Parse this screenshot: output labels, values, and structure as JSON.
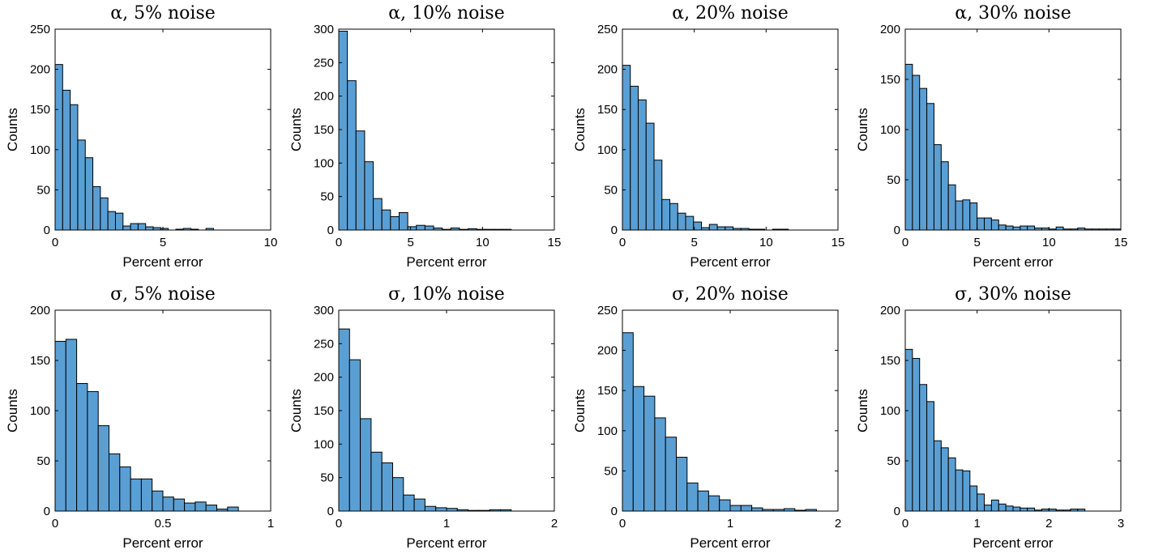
{
  "chart_data": [
    {
      "type": "bar",
      "title": "α, 5% noise",
      "xlabel": "Percent error",
      "ylabel": "Counts",
      "xlim": [
        0,
        10
      ],
      "ylim": [
        0,
        250
      ],
      "xticks": [
        0,
        5,
        10
      ],
      "yticks": [
        0,
        50,
        100,
        150,
        200,
        250
      ],
      "bin_width": 0.35,
      "values": [
        206,
        174,
        156,
        112,
        90,
        54,
        40,
        23,
        21,
        5,
        8,
        8,
        4,
        3,
        2,
        0,
        1,
        2,
        1,
        0,
        2
      ]
    },
    {
      "type": "bar",
      "title": "α, 10% noise",
      "xlabel": "Percent error",
      "ylabel": "Counts",
      "xlim": [
        0,
        15
      ],
      "ylim": [
        0,
        300
      ],
      "xticks": [
        0,
        5,
        10,
        15
      ],
      "yticks": [
        0,
        50,
        100,
        150,
        200,
        250,
        300
      ],
      "bin_width": 0.6,
      "values": [
        297,
        223,
        148,
        102,
        47,
        30,
        20,
        26,
        5,
        7,
        6,
        3,
        1,
        3,
        1,
        2,
        1,
        1,
        1,
        1
      ]
    },
    {
      "type": "bar",
      "title": "α, 20% noise",
      "xlabel": "Percent error",
      "ylabel": "Counts",
      "xlim": [
        0,
        15
      ],
      "ylim": [
        0,
        250
      ],
      "xticks": [
        0,
        5,
        10,
        15
      ],
      "yticks": [
        0,
        50,
        100,
        150,
        200,
        250
      ],
      "bin_width": 0.55,
      "values": [
        205,
        179,
        162,
        133,
        87,
        38,
        33,
        21,
        17,
        10,
        3,
        7,
        4,
        4,
        2,
        2,
        1,
        1,
        0,
        1,
        1
      ]
    },
    {
      "type": "bar",
      "title": "α, 30% noise",
      "xlabel": "Percent error",
      "ylabel": "Counts",
      "xlim": [
        0,
        15
      ],
      "ylim": [
        0,
        200
      ],
      "xticks": [
        0,
        5,
        10,
        15
      ],
      "yticks": [
        0,
        50,
        100,
        150,
        200
      ],
      "bin_width": 0.5,
      "values": [
        165,
        154,
        141,
        126,
        85,
        68,
        45,
        29,
        30,
        27,
        12,
        12,
        10,
        5,
        4,
        3,
        4,
        4,
        2,
        2,
        1,
        3,
        1,
        1,
        2,
        1,
        1,
        1,
        1,
        1
      ]
    },
    {
      "type": "bar",
      "title": "σ, 5% noise",
      "xlabel": "Percent error",
      "ylabel": "Counts",
      "xlim": [
        0,
        1
      ],
      "ylim": [
        0,
        200
      ],
      "xticks": [
        0,
        0.5,
        1
      ],
      "yticks": [
        0,
        50,
        100,
        150,
        200
      ],
      "bin_width": 0.05,
      "values": [
        169,
        171,
        127,
        119,
        85,
        57,
        44,
        32,
        32,
        20,
        14,
        12,
        8,
        9,
        6,
        2,
        4
      ]
    },
    {
      "type": "bar",
      "title": "σ, 10% noise",
      "xlabel": "Percent error",
      "ylabel": "Counts",
      "xlim": [
        0,
        2
      ],
      "ylim": [
        0,
        300
      ],
      "xticks": [
        0,
        1,
        2
      ],
      "yticks": [
        0,
        50,
        100,
        150,
        200,
        250,
        300
      ],
      "bin_width": 0.1,
      "values": [
        272,
        226,
        138,
        88,
        72,
        50,
        24,
        18,
        7,
        5,
        4,
        2,
        1,
        1,
        2,
        2
      ]
    },
    {
      "type": "bar",
      "title": "σ, 20% noise",
      "xlabel": "Percent error",
      "ylabel": "Counts",
      "xlim": [
        0,
        2
      ],
      "ylim": [
        0,
        250
      ],
      "xticks": [
        0,
        1,
        2
      ],
      "yticks": [
        0,
        50,
        100,
        150,
        200,
        250
      ],
      "bin_width": 0.1,
      "values": [
        222,
        155,
        143,
        116,
        92,
        67,
        35,
        25,
        19,
        14,
        7,
        7,
        4,
        2,
        2,
        3,
        1,
        2
      ]
    },
    {
      "type": "bar",
      "title": "σ, 30% noise",
      "xlabel": "Percent error",
      "ylabel": "Counts",
      "xlim": [
        0,
        3
      ],
      "ylim": [
        0,
        200
      ],
      "xticks": [
        0,
        1,
        2,
        3
      ],
      "yticks": [
        0,
        50,
        100,
        150,
        200
      ],
      "bin_width": 0.1,
      "values": [
        161,
        152,
        126,
        109,
        70,
        63,
        53,
        41,
        40,
        25,
        17,
        6,
        11,
        7,
        5,
        4,
        3,
        3,
        1,
        2,
        2,
        1,
        1,
        2,
        2
      ]
    }
  ]
}
